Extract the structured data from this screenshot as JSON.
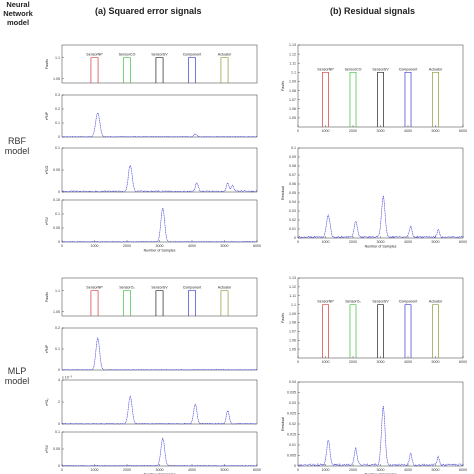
{
  "headers": {
    "model_col": "Neural Network model",
    "col_a": "(a) Squared error signals",
    "col_b": "(b) Residual signals"
  },
  "models": [
    {
      "name": "RBF model"
    },
    {
      "name": "MLP model"
    }
  ],
  "colors": {
    "trace": "#3b3bd6",
    "red": "#d83a3a",
    "green": "#3fbf3f",
    "black": "#222222",
    "blue": "#3b3bd6",
    "olive": "#8a9a3a"
  },
  "chart_data": [
    {
      "id": "rbf_a_bars",
      "type": "bar",
      "xlim": [
        0,
        6000
      ],
      "ylim": [
        1.04,
        1.13
      ],
      "ylabel": "Faults",
      "yticks": [
        "1.05",
        "1.1"
      ],
      "bars": [
        {
          "x": 1000,
          "label": "SensorNP",
          "color": "red"
        },
        {
          "x": 2000,
          "label": "SensorCO",
          "color": "green"
        },
        {
          "x": 3000,
          "label": "SensorSV",
          "color": "black"
        },
        {
          "x": 4000,
          "label": "Component",
          "color": "blue"
        },
        {
          "x": 5000,
          "label": "Actuator",
          "color": "olive"
        }
      ]
    },
    {
      "id": "rbf_a_e1",
      "type": "line",
      "xlim": [
        0,
        6000
      ],
      "ylim": [
        0,
        0.3
      ],
      "ylabel": "e²NP",
      "yticks": [
        "0",
        "0.1",
        "0.2",
        "0.3"
      ],
      "peaks": [
        [
          1100,
          0.17,
          90
        ],
        [
          4100,
          0.02,
          60
        ]
      ],
      "noise": 0.004
    },
    {
      "id": "rbf_a_e2",
      "type": "line",
      "xlim": [
        0,
        6000
      ],
      "ylim": [
        0,
        0.1
      ],
      "ylabel": "e²CO",
      "yticks": [
        "0",
        "0.05",
        "0.1"
      ],
      "peaks": [
        [
          2100,
          0.06,
          80
        ],
        [
          4150,
          0.02,
          60
        ],
        [
          5100,
          0.018,
          60
        ],
        [
          5250,
          0.014,
          50
        ]
      ],
      "noise": 0.003
    },
    {
      "id": "rbf_a_e3",
      "type": "line",
      "xlim": [
        0,
        6000
      ],
      "ylim": [
        0,
        0.15
      ],
      "ylabel": "e²SV",
      "yticks": [
        "0",
        "0.05",
        "0.1",
        "0.15"
      ],
      "xlabel": "Number of Samples",
      "xticks": [
        "0",
        "1000",
        "2000",
        "3000",
        "4000",
        "5000",
        "6000"
      ],
      "peaks": [
        [
          3100,
          0.12,
          80
        ]
      ],
      "noise": 0.002
    },
    {
      "id": "rbf_b_bars",
      "type": "bar",
      "xlim": [
        0,
        6000
      ],
      "ylim": [
        1.04,
        1.13
      ],
      "ylabel": "Faults",
      "yticks": [
        "1.05",
        "1.06",
        "1.07",
        "1.08",
        "1.09",
        "1.1",
        "1.11",
        "1.12",
        "1.13"
      ],
      "xticks": [
        "0",
        "1000",
        "2000",
        "3000",
        "4000",
        "5000",
        "6000"
      ],
      "bars": [
        {
          "x": 1000,
          "label": "SensorNP",
          "color": "red"
        },
        {
          "x": 2000,
          "label": "SensorCO",
          "color": "green"
        },
        {
          "x": 3000,
          "label": "SensorSV",
          "color": "black"
        },
        {
          "x": 4000,
          "label": "Component",
          "color": "blue"
        },
        {
          "x": 5000,
          "label": "Actuator",
          "color": "olive"
        }
      ]
    },
    {
      "id": "rbf_b_res",
      "type": "line",
      "xlim": [
        0,
        6000
      ],
      "ylim": [
        0,
        0.1
      ],
      "ylabel": "Residual",
      "yticks": [
        "0",
        "0.01",
        "0.02",
        "0.03",
        "0.04",
        "0.05",
        "0.06",
        "0.07",
        "0.08",
        "0.09",
        "0.1"
      ],
      "xlabel": "Number of Samples",
      "xticks": [
        "0",
        "1000",
        "2000",
        "3000",
        "4000",
        "5000",
        "6000"
      ],
      "peaks": [
        [
          1100,
          0.025,
          90
        ],
        [
          2100,
          0.018,
          80
        ],
        [
          3100,
          0.045,
          90
        ],
        [
          4100,
          0.012,
          70
        ],
        [
          5100,
          0.008,
          60
        ]
      ],
      "noise": 0.002
    },
    {
      "id": "mlp_a_bars",
      "type": "bar",
      "xlim": [
        0,
        6000
      ],
      "ylim": [
        1.04,
        1.13
      ],
      "ylabel": "Faults",
      "yticks": [
        "1.05",
        "1.1"
      ],
      "bars": [
        {
          "x": 1000,
          "label": "SensorNP",
          "color": "red"
        },
        {
          "x": 2000,
          "label": "SensorO₂",
          "color": "green"
        },
        {
          "x": 3000,
          "label": "SensorSV",
          "color": "black"
        },
        {
          "x": 4000,
          "label": "Component",
          "color": "blue"
        },
        {
          "x": 5000,
          "label": "Actuator",
          "color": "olive"
        }
      ]
    },
    {
      "id": "mlp_a_e1",
      "type": "line",
      "xlim": [
        0,
        6000
      ],
      "ylim": [
        0,
        0.2
      ],
      "ylabel": "e²NP",
      "yticks": [
        "0",
        "0.1",
        "0.2"
      ],
      "peaks": [
        [
          1100,
          0.15,
          80
        ]
      ],
      "noise": 0.002
    },
    {
      "id": "mlp_a_e2",
      "type": "line",
      "xlim": [
        0,
        6000
      ],
      "ylim": [
        0,
        4
      ],
      "ylabel": "e²O₂",
      "yticks": [
        "0",
        "2",
        "4"
      ],
      "scale": "x 10⁻³",
      "peaks": [
        [
          2100,
          2.5,
          80
        ],
        [
          4100,
          1.8,
          70
        ],
        [
          5100,
          1.2,
          60
        ]
      ],
      "noise": 0.06
    },
    {
      "id": "mlp_a_e3",
      "type": "line",
      "xlim": [
        0,
        6000
      ],
      "ylim": [
        0,
        0.1
      ],
      "ylabel": "e²SV",
      "yticks": [
        "0",
        "0.05",
        "0.1"
      ],
      "xlabel": "Number of Samples",
      "xticks": [
        "0",
        "1000",
        "2000",
        "3000",
        "4000",
        "5000",
        "6000"
      ],
      "peaks": [
        [
          3100,
          0.08,
          80
        ]
      ],
      "noise": 0.002
    },
    {
      "id": "mlp_b_bars",
      "type": "bar",
      "xlim": [
        0,
        6000
      ],
      "ylim": [
        1.04,
        1.13
      ],
      "ylabel": "Faults",
      "yticks": [
        "1.05",
        "1.06",
        "1.07",
        "1.08",
        "1.09",
        "1.1",
        "1.11",
        "1.12",
        "1.13"
      ],
      "xticks": [
        "0",
        "1000",
        "2000",
        "3000",
        "4000",
        "5000",
        "6000"
      ],
      "bars": [
        {
          "x": 1000,
          "label": "SensorNP",
          "color": "red"
        },
        {
          "x": 2000,
          "label": "SensorO₂",
          "color": "green"
        },
        {
          "x": 3000,
          "label": "SensorSV",
          "color": "black"
        },
        {
          "x": 4000,
          "label": "Component",
          "color": "blue"
        },
        {
          "x": 5000,
          "label": "Actuator",
          "color": "olive"
        }
      ]
    },
    {
      "id": "mlp_b_res",
      "type": "line",
      "xlim": [
        0,
        6000
      ],
      "ylim": [
        0,
        0.04
      ],
      "ylabel": "Residual",
      "yticks": [
        "0",
        "0.005",
        "0.01",
        "0.015",
        "0.02",
        "0.025",
        "0.03",
        "0.035",
        "0.04"
      ],
      "xlabel": "Number of Samples",
      "xticks": [
        "0",
        "1000",
        "2000",
        "3000",
        "4000",
        "5000",
        "6000"
      ],
      "peaks": [
        [
          1100,
          0.012,
          80
        ],
        [
          2100,
          0.008,
          70
        ],
        [
          3100,
          0.028,
          90
        ],
        [
          4100,
          0.006,
          60
        ],
        [
          5100,
          0.004,
          60
        ]
      ],
      "noise": 0.001
    }
  ]
}
